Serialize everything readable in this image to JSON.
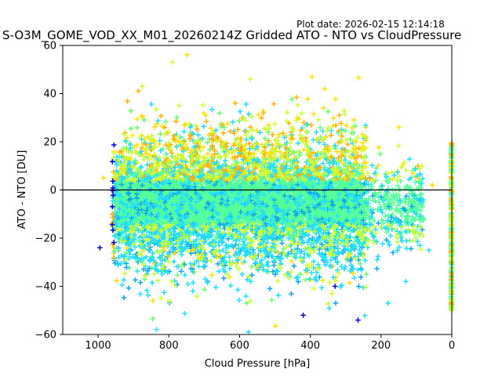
{
  "header": {
    "plot_date": "Plot date: 2026-02-15 12:14:18",
    "title": "S-O3M_GOME_VOD_XX_M01_20260214Z Gridded ATO - NTO vs CloudPressure"
  },
  "chart_data": {
    "type": "scatter",
    "marker": "plus",
    "xlabel": "Cloud Pressure [hPa]",
    "ylabel": "ATO - NTO [DU]",
    "xlim": [
      1100,
      0
    ],
    "ylim": [
      -60,
      60
    ],
    "x_ticks": [
      1000,
      800,
      600,
      400,
      200,
      0
    ],
    "y_ticks": [
      60,
      40,
      20,
      0,
      -20,
      -40,
      -60
    ],
    "x_tick_labels": [
      "1000",
      "800",
      "600",
      "400",
      "200",
      "0"
    ],
    "y_tick_labels": [
      "60",
      "40",
      "20",
      "0",
      "−20",
      "−40",
      "−60"
    ],
    "reference_line_y": 0,
    "grid": false,
    "colors": {
      "dense_core": "#55ff99",
      "cyan": "#22ddff",
      "blue_cyan": "#0aa5ee",
      "yellow_green": "#ccff33",
      "yellow": "#ffe000",
      "orange": "#ffb000",
      "dark_blue": "#0000dd",
      "green": "#66ff66"
    },
    "point_clusters": [
      {
        "name": "main-cloud",
        "x_range": [
          960,
          240
        ],
        "y_center": -5,
        "y_spread": 24
      },
      {
        "name": "low-pressure-tail",
        "x_range": [
          240,
          80
        ],
        "y_center": -8,
        "y_spread": 14
      },
      {
        "name": "zero-pressure-column",
        "x_range": [
          2,
          0
        ],
        "y_center": -15,
        "y_spread": 35
      }
    ],
    "notable_points": [
      {
        "x": 790,
        "y": 53
      },
      {
        "x": 875,
        "y": 43
      },
      {
        "x": 570,
        "y": 46
      },
      {
        "x": 395,
        "y": 47
      },
      {
        "x": 360,
        "y": 42
      },
      {
        "x": 150,
        "y": 26
      },
      {
        "x": 85,
        "y": 10
      },
      {
        "x": 55,
        "y": 2
      },
      {
        "x": 985,
        "y": 5
      },
      {
        "x": 995,
        "y": -24
      },
      {
        "x": 835,
        "y": -58
      },
      {
        "x": 575,
        "y": -59
      },
      {
        "x": 420,
        "y": -52
      },
      {
        "x": 265,
        "y": -54
      },
      {
        "x": 130,
        "y": -38
      },
      {
        "x": 180,
        "y": -47
      },
      {
        "x": 65,
        "y": -25
      },
      {
        "x": 330,
        "y": -40
      }
    ]
  }
}
